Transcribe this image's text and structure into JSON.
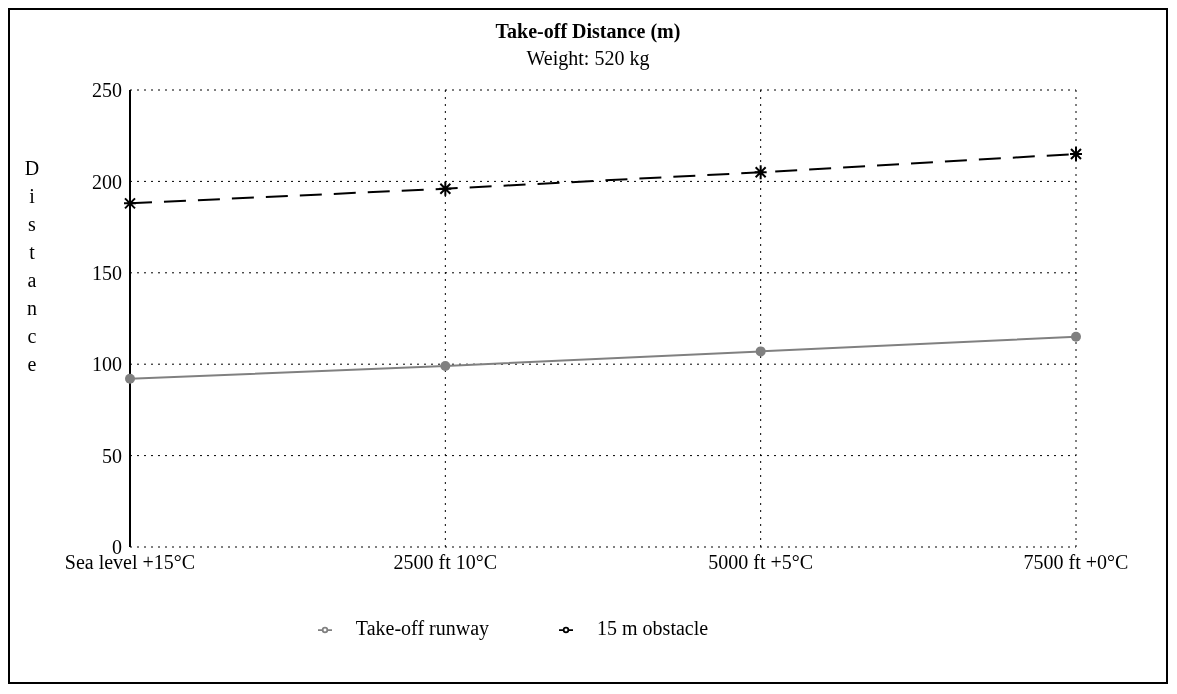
{
  "chart_data": {
    "type": "line",
    "title": "Take-off Distance (m)",
    "subtitle": "Weight: 520 kg",
    "ylabel": "Distance",
    "categories": [
      "Sea level +15°C",
      "2500 ft 10°C",
      "5000 ft +5°C",
      "7500 ft +0°C"
    ],
    "series": [
      {
        "name": "Take-off runway",
        "color": "#808080",
        "values": [
          92,
          99,
          107,
          115
        ],
        "marker": "circle",
        "line_style": "solid"
      },
      {
        "name": "15 m obstacle",
        "color": "#000000",
        "values": [
          188,
          196,
          205,
          215
        ],
        "marker": "cross",
        "line_style": "dashed"
      }
    ],
    "ylim": [
      0,
      250
    ],
    "yticks": [
      0,
      50,
      100,
      150,
      200,
      250
    ],
    "grid": true,
    "legend": "bottom"
  }
}
